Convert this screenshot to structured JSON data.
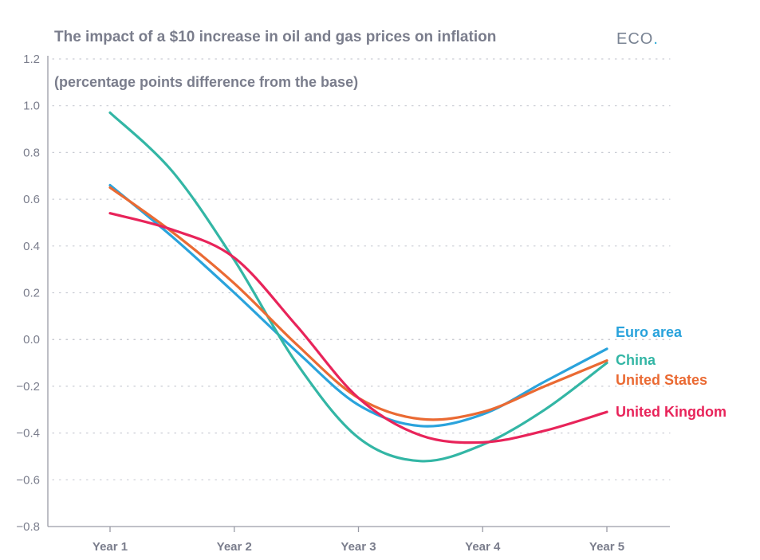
{
  "title": "The impact of a $10 increase in oil and gas prices on inflation",
  "subtitle": "(percentage points difference from the base)",
  "logo": {
    "text": "ECO",
    "dot": "."
  },
  "chart_data": {
    "type": "line",
    "title": "The impact of a $10 increase in oil and gas prices on inflation",
    "subtitle": "(percentage points difference from the base)",
    "xlabel": "",
    "ylabel": "",
    "x": [
      "Year 1",
      "Year 2",
      "Year 3",
      "Year 4",
      "Year 5"
    ],
    "ylim": [
      -0.8,
      1.2
    ],
    "yticks": [
      1.2,
      1.0,
      0.8,
      0.6,
      0.4,
      0.2,
      0.0,
      -0.2,
      -0.4,
      -0.6,
      -0.8
    ],
    "ytick_labels": [
      "1.2",
      "1.0",
      "0.8",
      "0.6",
      "0.4",
      "0.2",
      "0.0",
      "−0.2",
      "−0.4",
      "−0.6",
      "−0.8"
    ],
    "grid": true,
    "legend": "direct labels at line ends (right)",
    "series": [
      {
        "name": "Euro area",
        "color": "#2aa3dc",
        "points": [
          [
            1,
            0.66
          ],
          [
            1.5,
            0.44
          ],
          [
            2,
            0.2
          ],
          [
            2.5,
            -0.05
          ],
          [
            3,
            -0.28
          ],
          [
            3.5,
            -0.37
          ],
          [
            4,
            -0.32
          ],
          [
            4.5,
            -0.18
          ],
          [
            5,
            -0.04
          ]
        ]
      },
      {
        "name": "China",
        "color": "#33b6a5",
        "points": [
          [
            1,
            0.97
          ],
          [
            1.5,
            0.72
          ],
          [
            2,
            0.34
          ],
          [
            2.5,
            -0.1
          ],
          [
            3,
            -0.42
          ],
          [
            3.5,
            -0.52
          ],
          [
            4,
            -0.45
          ],
          [
            4.5,
            -0.3
          ],
          [
            5,
            -0.1
          ]
        ]
      },
      {
        "name": "United States",
        "color": "#ea6a33",
        "points": [
          [
            1,
            0.65
          ],
          [
            1.5,
            0.46
          ],
          [
            2,
            0.24
          ],
          [
            2.5,
            -0.02
          ],
          [
            3,
            -0.25
          ],
          [
            3.5,
            -0.34
          ],
          [
            4,
            -0.31
          ],
          [
            4.5,
            -0.2
          ],
          [
            5,
            -0.09
          ]
        ]
      },
      {
        "name": "United Kingdom",
        "color": "#e8245a",
        "points": [
          [
            1,
            0.54
          ],
          [
            1.5,
            0.47
          ],
          [
            2,
            0.35
          ],
          [
            2.5,
            0.06
          ],
          [
            3,
            -0.25
          ],
          [
            3.5,
            -0.41
          ],
          [
            4,
            -0.44
          ],
          [
            4.5,
            -0.39
          ],
          [
            5,
            -0.31
          ]
        ]
      }
    ]
  }
}
